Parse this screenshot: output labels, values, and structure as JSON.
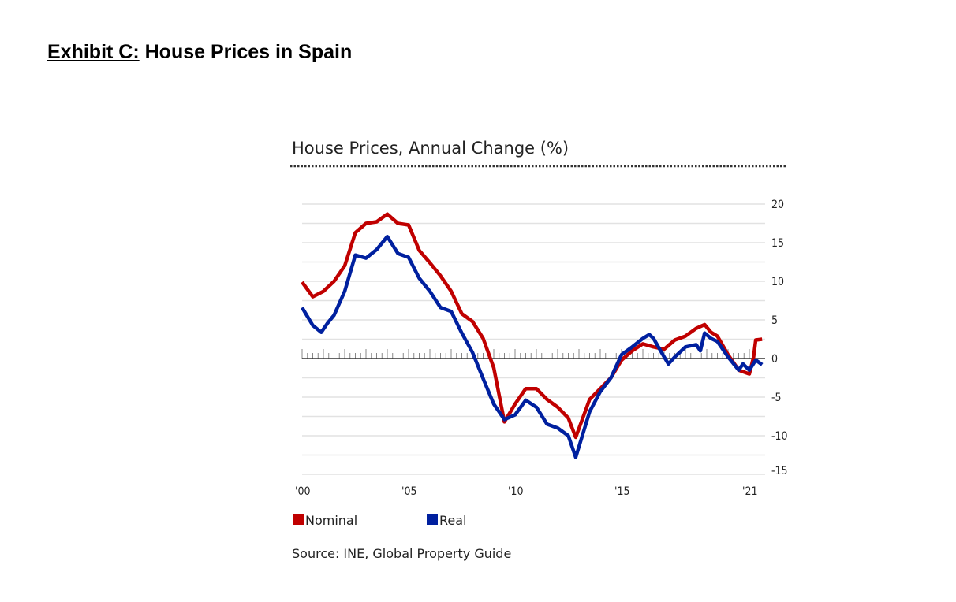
{
  "exhibit": {
    "label": "Exhibit C:",
    "title": "House Prices in Spain"
  },
  "chart_data": {
    "type": "line",
    "title": "House Prices, Annual Change (%)",
    "source": "Source: INE, Global Property Guide",
    "xlabel": "",
    "ylabel": "",
    "xlim": [
      2000,
      2021.6
    ],
    "ylim": [
      -15,
      20
    ],
    "x_tick_labels": [
      {
        "x": 2000,
        "label": "'00"
      },
      {
        "x": 2005,
        "label": "'05"
      },
      {
        "x": 2010,
        "label": "'10"
      },
      {
        "x": 2015,
        "label": "'15"
      },
      {
        "x": 2021,
        "label": "'21"
      }
    ],
    "y_ticks": [
      20,
      15,
      10,
      5,
      0,
      -5,
      -10,
      -15
    ],
    "y_axis_side": "right",
    "grid": true,
    "legend_position": "bottom-left",
    "series": [
      {
        "name": "Nominal",
        "color": "#c00000",
        "x": [
          2000,
          2000.5,
          2001,
          2001.5,
          2002,
          2002.5,
          2003,
          2003.5,
          2004,
          2004.5,
          2005,
          2005.5,
          2006,
          2006.5,
          2007,
          2007.5,
          2008,
          2008.5,
          2009,
          2009.5,
          2010,
          2010.5,
          2011,
          2011.5,
          2012,
          2012.5,
          2012.85,
          2013.5,
          2014,
          2014.5,
          2015,
          2015.5,
          2016,
          2016.5,
          2017,
          2017.5,
          2018,
          2018.5,
          2018.9,
          2019.2,
          2019.5,
          2020,
          2020.5,
          2021,
          2021.2,
          2021.3,
          2021.6
        ],
        "y": [
          9.9,
          8.0,
          8.7,
          10,
          12,
          16.3,
          17.5,
          17.7,
          18.7,
          17.5,
          17.3,
          14,
          12.4,
          10.7,
          8.7,
          5.8,
          4.8,
          2.6,
          -1.2,
          -8.2,
          -5.9,
          -3.9,
          -3.9,
          -5.3,
          -6.3,
          -7.7,
          -10.2,
          -5.3,
          -3.9,
          -2.5,
          -0.2,
          1.0,
          1.9,
          1.5,
          1.2,
          2.4,
          2.9,
          3.9,
          4.4,
          3.4,
          2.9,
          0.5,
          -1.5,
          -2.0,
          0.2,
          2.4,
          2.5
        ]
      },
      {
        "name": "Real",
        "color": "#00209f",
        "x": [
          2000,
          2000.5,
          2000.9,
          2001.2,
          2001.5,
          2002,
          2002.5,
          2003,
          2003.5,
          2004,
          2004.5,
          2005,
          2005.5,
          2006,
          2006.5,
          2007,
          2007.5,
          2008,
          2008.5,
          2009,
          2009.5,
          2010,
          2010.5,
          2011,
          2011.5,
          2012,
          2012.5,
          2012.85,
          2013.5,
          2014,
          2014.5,
          2015,
          2015.5,
          2016,
          2016.3,
          2016.5,
          2017,
          2017.2,
          2017.5,
          2018,
          2018.5,
          2018.7,
          2018.9,
          2019.2,
          2019.5,
          2020,
          2020.5,
          2020.7,
          2021,
          2021.3,
          2021.6
        ],
        "y": [
          6.6,
          4.3,
          3.4,
          4.6,
          5.6,
          8.7,
          13.4,
          13,
          14.1,
          15.8,
          13.6,
          13.1,
          10.4,
          8.7,
          6.6,
          6.1,
          3.3,
          0.8,
          -2.6,
          -5.9,
          -7.9,
          -7.3,
          -5.4,
          -6.3,
          -8.5,
          -9,
          -10,
          -12.8,
          -6.9,
          -4.3,
          -2.5,
          0.5,
          1.5,
          2.6,
          3.1,
          2.6,
          0.2,
          -0.7,
          0.2,
          1.5,
          1.8,
          1.0,
          3.3,
          2.6,
          2.2,
          0.2,
          -1.5,
          -0.7,
          -1.5,
          -0.2,
          -0.8
        ]
      }
    ]
  }
}
